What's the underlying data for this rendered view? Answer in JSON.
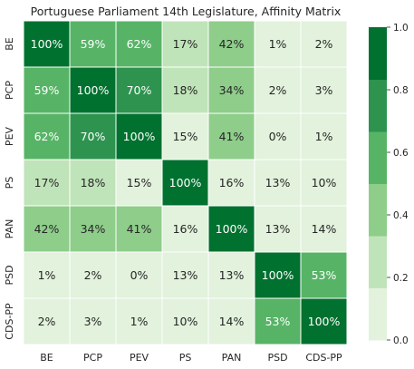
{
  "chart_data": {
    "type": "heatmap",
    "title": "Portuguese Parliament 14th Legislature, Affinity Matrix",
    "xlabel": "",
    "ylabel": "",
    "x_categories": [
      "BE",
      "PCP",
      "PEV",
      "PS",
      "PAN",
      "PSD",
      "CDS-PP"
    ],
    "y_categories": [
      "BE",
      "PCP",
      "PEV",
      "PS",
      "PAN",
      "PSD",
      "CDS-PP"
    ],
    "values": [
      [
        1.0,
        0.59,
        0.62,
        0.17,
        0.42,
        0.01,
        0.02
      ],
      [
        0.59,
        1.0,
        0.7,
        0.18,
        0.34,
        0.02,
        0.03
      ],
      [
        0.62,
        0.7,
        1.0,
        0.15,
        0.41,
        0.0,
        0.01
      ],
      [
        0.17,
        0.18,
        0.15,
        1.0,
        0.16,
        0.13,
        0.1
      ],
      [
        0.42,
        0.34,
        0.41,
        0.16,
        1.0,
        0.13,
        0.14
      ],
      [
        0.01,
        0.02,
        0.0,
        0.13,
        0.13,
        1.0,
        0.53
      ],
      [
        0.02,
        0.03,
        0.01,
        0.1,
        0.14,
        0.53,
        1.0
      ]
    ],
    "cell_labels": [
      [
        "100%",
        "59%",
        "62%",
        "17%",
        "42%",
        "1%",
        "2%"
      ],
      [
        "59%",
        "100%",
        "70%",
        "18%",
        "34%",
        "2%",
        "3%"
      ],
      [
        "62%",
        "70%",
        "100%",
        "15%",
        "41%",
        "0%",
        "1%"
      ],
      [
        "17%",
        "18%",
        "15%",
        "100%",
        "16%",
        "13%",
        "10%"
      ],
      [
        "42%",
        "34%",
        "41%",
        "16%",
        "100%",
        "13%",
        "14%"
      ],
      [
        "1%",
        "2%",
        "0%",
        "13%",
        "13%",
        "100%",
        "53%"
      ],
      [
        "2%",
        "3%",
        "1%",
        "10%",
        "14%",
        "53%",
        "100%"
      ]
    ],
    "colorbar": {
      "range": [
        0.0,
        1.0
      ],
      "ticks": [
        "0.0",
        "0.2",
        "0.4",
        "0.6",
        "0.8",
        "1.0"
      ],
      "colors": [
        "#e2f2dc",
        "#c0e4b9",
        "#8ecd8a",
        "#57b466",
        "#2d934f",
        "#00712f"
      ]
    },
    "annotation_text_colors": {
      "light_cell": "#262626",
      "dark_cell": "#ffffff"
    },
    "grid": false
  }
}
